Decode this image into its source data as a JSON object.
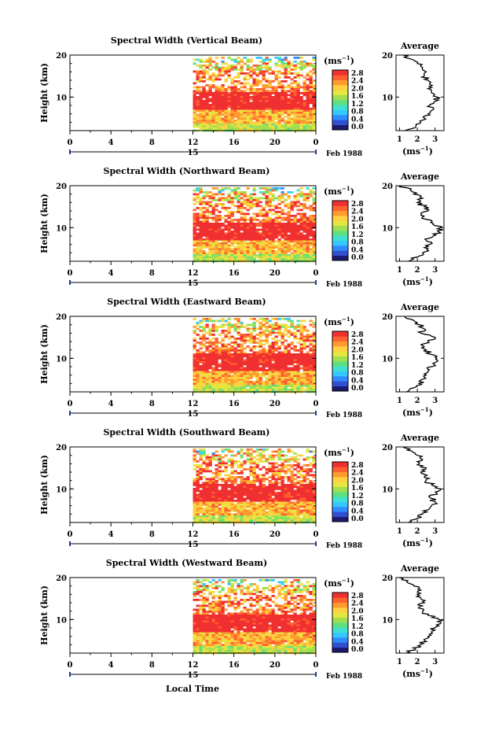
{
  "figure": {
    "xlabel_bottom": "Local Time",
    "colorbar_unit": "(ms",
    "unit_exponent": "−1",
    "colorbar_ticks": [
      "0.0",
      "0.4",
      "0.8",
      "1.2",
      "1.6",
      "2.0",
      "2.4",
      "2.8"
    ],
    "colorbar_colors": [
      "#1a1a6e",
      "#3050d0",
      "#2f8cff",
      "#35c8ff",
      "#40e0d0",
      "#5fe080",
      "#a0e050",
      "#e6e640",
      "#ffd040",
      "#ff9a30",
      "#ff6030",
      "#f03030"
    ],
    "date_label": "Feb 1988",
    "day_label": "15",
    "average_title": "Average"
  },
  "chart_data": [
    {
      "type": "heatmap",
      "title": "Spectral Width (Vertical Beam)",
      "ylabel": "Height (km)",
      "x_ticks": [
        "0",
        "4",
        "8",
        "12",
        "16",
        "20",
        "0"
      ],
      "xlim": [
        0,
        24
      ],
      "ylim": [
        2,
        20
      ],
      "y_ticks": [
        "10",
        "20"
      ],
      "data_start_hour": 12,
      "variable": "spectral width",
      "units": "ms-1",
      "average_profile": {
        "xlim": [
          0.8,
          3.5
        ],
        "x_ticks": [
          "1",
          "2",
          "3"
        ],
        "height_km": [
          2,
          3,
          4,
          5,
          6,
          7,
          8,
          9,
          10,
          11,
          12,
          13,
          14,
          15,
          16,
          17,
          18,
          19,
          20
        ],
        "values": [
          1.3,
          1.9,
          2.2,
          2.4,
          2.6,
          2.9,
          2.7,
          3.0,
          3.1,
          2.8,
          2.6,
          2.7,
          2.6,
          2.4,
          2.5,
          2.3,
          2.0,
          1.7,
          1.2
        ]
      }
    },
    {
      "type": "heatmap",
      "title": "Spectral Width (Northward Beam)",
      "ylabel": "Height (km)",
      "x_ticks": [
        "0",
        "4",
        "8",
        "12",
        "16",
        "20",
        "0"
      ],
      "xlim": [
        0,
        24
      ],
      "ylim": [
        2,
        20
      ],
      "y_ticks": [
        "10",
        "20"
      ],
      "data_start_hour": 12,
      "variable": "spectral width",
      "units": "ms-1",
      "average_profile": {
        "xlim": [
          0.8,
          3.5
        ],
        "x_ticks": [
          "1",
          "2",
          "3"
        ],
        "height_km": [
          2,
          3,
          4,
          5,
          6,
          7,
          8,
          9,
          10,
          11,
          12,
          13,
          14,
          15,
          16,
          17,
          18,
          19,
          20
        ],
        "values": [
          1.5,
          2.0,
          2.3,
          2.6,
          2.7,
          2.5,
          2.9,
          3.2,
          3.3,
          2.9,
          2.5,
          2.2,
          2.6,
          2.4,
          2.0,
          2.3,
          1.8,
          1.6,
          1.1
        ]
      }
    },
    {
      "type": "heatmap",
      "title": "Spectral Width (Eastward Beam)",
      "ylabel": "Height (km)",
      "x_ticks": [
        "0",
        "4",
        "8",
        "12",
        "16",
        "20",
        "0"
      ],
      "xlim": [
        0,
        24
      ],
      "ylim": [
        2,
        20
      ],
      "y_ticks": [
        "10",
        "20"
      ],
      "data_start_hour": 12,
      "variable": "spectral width",
      "units": "ms-1",
      "average_profile": {
        "xlim": [
          0.8,
          3.5
        ],
        "x_ticks": [
          "1",
          "2",
          "3"
        ],
        "height_km": [
          2,
          3,
          4,
          5,
          6,
          7,
          8,
          9,
          10,
          11,
          12,
          13,
          14,
          15,
          16,
          17,
          18,
          19,
          20
        ],
        "values": [
          1.4,
          1.8,
          2.1,
          2.3,
          2.5,
          2.6,
          2.8,
          3.0,
          3.1,
          2.7,
          2.5,
          2.3,
          2.6,
          3.0,
          2.2,
          2.4,
          2.1,
          1.8,
          1.3
        ]
      }
    },
    {
      "type": "heatmap",
      "title": "Spectral Width (Southward Beam)",
      "ylabel": "Height (km)",
      "x_ticks": [
        "0",
        "4",
        "8",
        "12",
        "16",
        "20",
        "0"
      ],
      "xlim": [
        0,
        24
      ],
      "ylim": [
        2,
        20
      ],
      "y_ticks": [
        "10",
        "20"
      ],
      "data_start_hour": 12,
      "variable": "spectral width",
      "units": "ms-1",
      "average_profile": {
        "xlim": [
          0.8,
          3.5
        ],
        "x_ticks": [
          "1",
          "2",
          "3"
        ],
        "height_km": [
          2,
          3,
          4,
          5,
          6,
          7,
          8,
          9,
          10,
          11,
          12,
          13,
          14,
          15,
          16,
          17,
          18,
          19,
          20
        ],
        "values": [
          1.5,
          2.0,
          2.3,
          2.6,
          2.8,
          3.0,
          2.7,
          3.1,
          3.3,
          2.8,
          2.5,
          2.4,
          2.2,
          2.5,
          2.1,
          2.3,
          2.0,
          1.7,
          1.2
        ]
      }
    },
    {
      "type": "heatmap",
      "title": "Spectral Width (Westward Beam)",
      "ylabel": "Height (km)",
      "x_ticks": [
        "0",
        "4",
        "8",
        "12",
        "16",
        "20",
        "0"
      ],
      "xlim": [
        0,
        24
      ],
      "ylim": [
        2,
        20
      ],
      "y_ticks": [
        "10",
        "20"
      ],
      "data_start_hour": 12,
      "variable": "spectral width",
      "units": "ms-1",
      "average_profile": {
        "xlim": [
          0.8,
          3.5
        ],
        "x_ticks": [
          "1",
          "2",
          "3"
        ],
        "height_km": [
          2,
          3,
          4,
          5,
          6,
          7,
          8,
          9,
          10,
          11,
          12,
          13,
          14,
          15,
          16,
          17,
          18,
          19,
          20
        ],
        "values": [
          1.4,
          1.9,
          2.2,
          2.4,
          2.6,
          2.8,
          3.0,
          3.3,
          3.2,
          2.6,
          2.3,
          2.1,
          2.4,
          2.2,
          2.0,
          2.2,
          1.8,
          1.4,
          1.0
        ]
      }
    }
  ]
}
